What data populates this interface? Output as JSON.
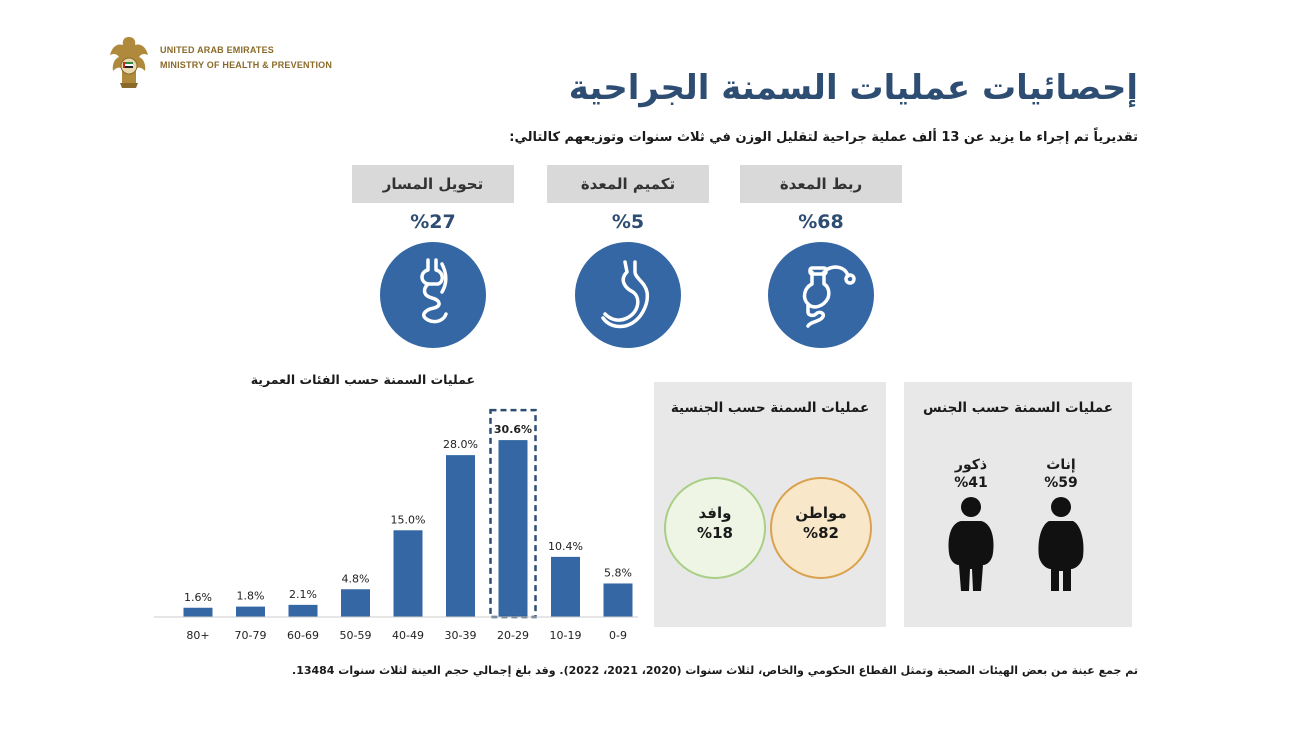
{
  "header": {
    "org_line1": "UNITED ARAB EMIRATES",
    "org_line2": "MINISTRY OF HEALTH & PREVENTION",
    "emblem_icon": "uae-falcon-emblem-icon",
    "title": "إحصائيات عمليات السمنة الجراحية",
    "subtitle": "تقديرياً تم إجراء ما يزيد عن 13 ألف عملية جراحية لتقليل الوزن في ثلاث سنوات وتوزيعهم كالتالي:"
  },
  "surgery_types": [
    {
      "label": "ربط المعدة",
      "pct": "%68",
      "icon": "gastric-band-icon"
    },
    {
      "label": "تكميم المعدة",
      "pct": "%5",
      "icon": "stomach-icon"
    },
    {
      "label": "تحويل المسار",
      "pct": "%27",
      "icon": "gastric-bypass-icon"
    }
  ],
  "gender": {
    "title": "عمليات السمنة حسب الجنس",
    "female": {
      "label": "إناث",
      "pct": "%59",
      "icon": "female-figure-icon"
    },
    "male": {
      "label": "ذكور",
      "pct": "%41",
      "icon": "male-figure-icon"
    }
  },
  "nationality": {
    "title": "عمليات السمنة حسب الجنسية",
    "citizen": {
      "label": "مواطن",
      "pct": "%82"
    },
    "resident": {
      "label": "وافد",
      "pct": "%18"
    }
  },
  "colors": {
    "primary": "#3467a4",
    "title": "#2e4d72",
    "citizen_fill": "#f8e7c9",
    "citizen_border": "#d9a24e",
    "resident_fill": "#eef5e4",
    "resident_border": "#a9cf86"
  },
  "chart_data": {
    "type": "bar",
    "title": "عمليات السمنة حسب الفئات العمرية",
    "categories": [
      "0-9",
      "10-19",
      "20-29",
      "30-39",
      "40-49",
      "50-59",
      "60-69",
      "70-79",
      "80+"
    ],
    "values": [
      5.8,
      10.4,
      30.6,
      28.0,
      15.0,
      4.8,
      2.1,
      1.8,
      1.6
    ],
    "value_labels": [
      "5.8%",
      "10.4%",
      "30.6%",
      "28.0%",
      "15.0%",
      "4.8%",
      "2.1%",
      "1.8%",
      "1.6%"
    ],
    "highlighted": "20-29",
    "category_order": "right-to-left",
    "ylim": [
      0,
      32
    ],
    "grid": false,
    "xlabel": "",
    "ylabel": ""
  },
  "footnote": "تم جمع عينة من بعض الهيئات الصحية وتمثل القطاع الحكومي والخاص، لثلاث سنوات (2020، 2021، 2022). وقد بلغ إجمالي حجم العينة لثلاث سنوات 13484."
}
